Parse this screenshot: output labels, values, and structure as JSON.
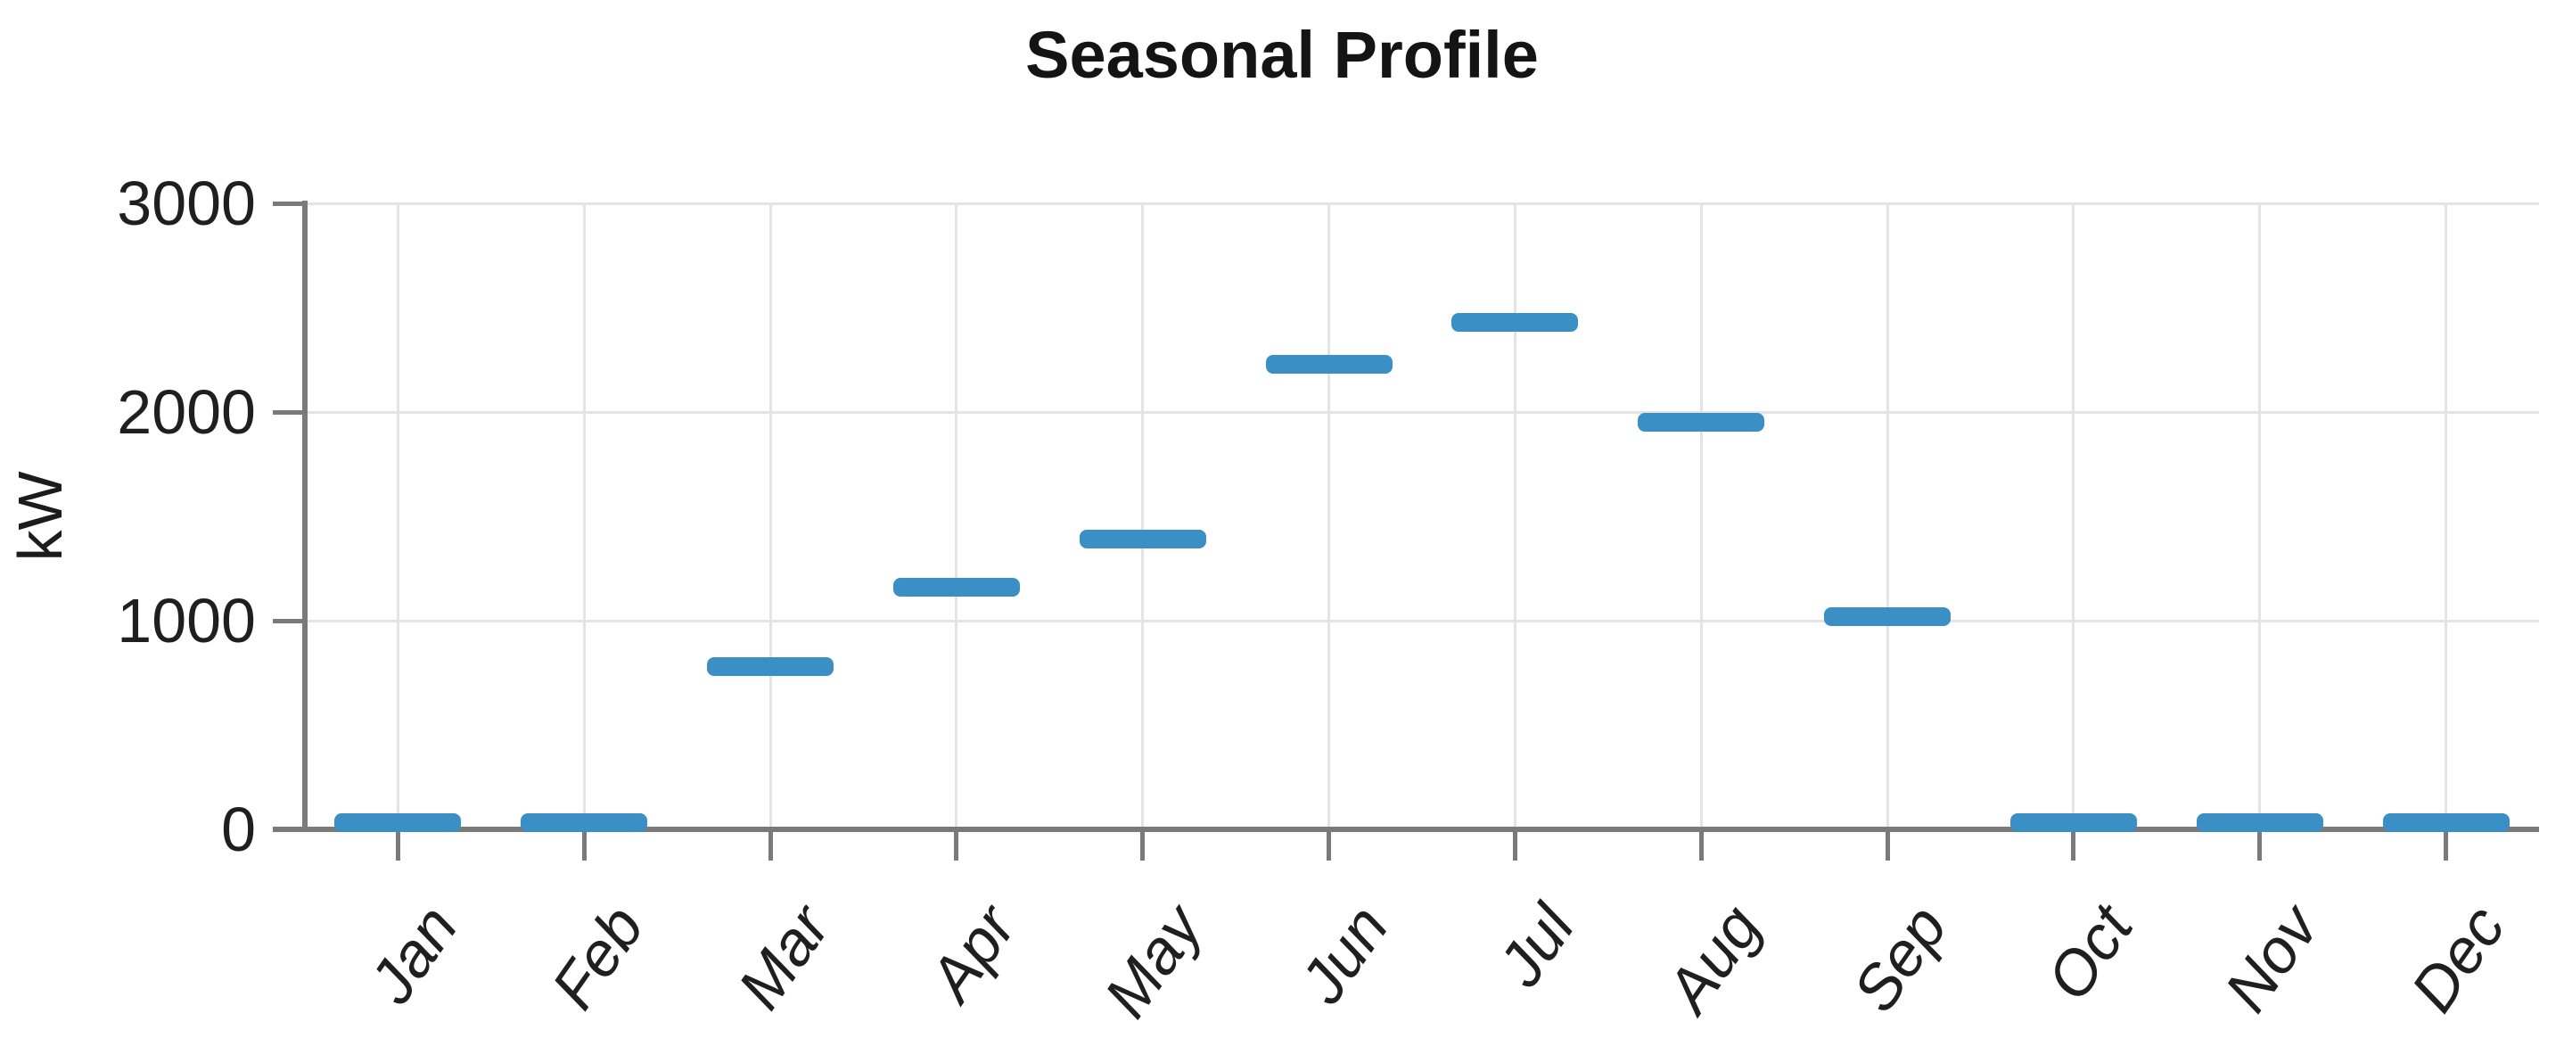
{
  "title": "Seasonal Profile",
  "y_axis": {
    "label": "kW",
    "ticks": [
      "0",
      "1000",
      "2000",
      "3000"
    ]
  },
  "x_axis": {
    "labels": [
      "Jan",
      "Feb",
      "Mar",
      "Apr",
      "May",
      "Jun",
      "Jul",
      "Aug",
      "Sep",
      "Oct",
      "Nov",
      "Dec"
    ]
  },
  "colors": {
    "marker": "#3A8FC4",
    "axis": "#7a7a7a",
    "grid": "#e4e4e4",
    "text": "#1f1f1f",
    "title_text": "#141414",
    "background": "#ffffff"
  },
  "chart_data": {
    "type": "tick",
    "title": "Seasonal Profile",
    "xlabel": "",
    "ylabel": "kW",
    "categories": [
      "Jan",
      "Feb",
      "Mar",
      "Apr",
      "May",
      "Jun",
      "Jul",
      "Aug",
      "Sep",
      "Oct",
      "Nov",
      "Dec"
    ],
    "values": [
      30,
      30,
      780,
      1160,
      1390,
      2230,
      2430,
      1950,
      1020,
      30,
      30,
      30
    ],
    "ylim": [
      0,
      3000
    ],
    "yticks": [
      0,
      1000,
      2000,
      3000
    ],
    "grid": true,
    "legend": false,
    "x_tick_rotation": -55,
    "marker_color": "#3A8FC4"
  }
}
